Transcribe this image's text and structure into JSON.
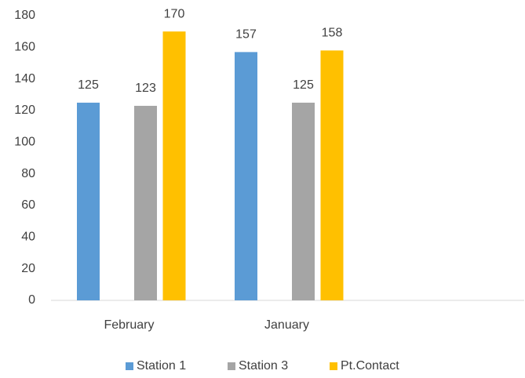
{
  "chart_data": {
    "type": "bar",
    "categories": [
      "February",
      "January",
      null
    ],
    "series": [
      {
        "name": "Station 1",
        "color": "#5b9bd5",
        "values": [
          125,
          157,
          null
        ]
      },
      {
        "name": "Station 3",
        "color": "#a5a5a5",
        "values": [
          123,
          125,
          null
        ]
      },
      {
        "name": "Pt.Contact",
        "color": "#ffc000",
        "values": [
          170,
          158,
          null
        ]
      }
    ],
    "ylim": [
      0,
      180
    ],
    "yticks": [
      0,
      20,
      40,
      60,
      80,
      100,
      120,
      140,
      160,
      180
    ],
    "grid": false,
    "legend": "bottom"
  }
}
